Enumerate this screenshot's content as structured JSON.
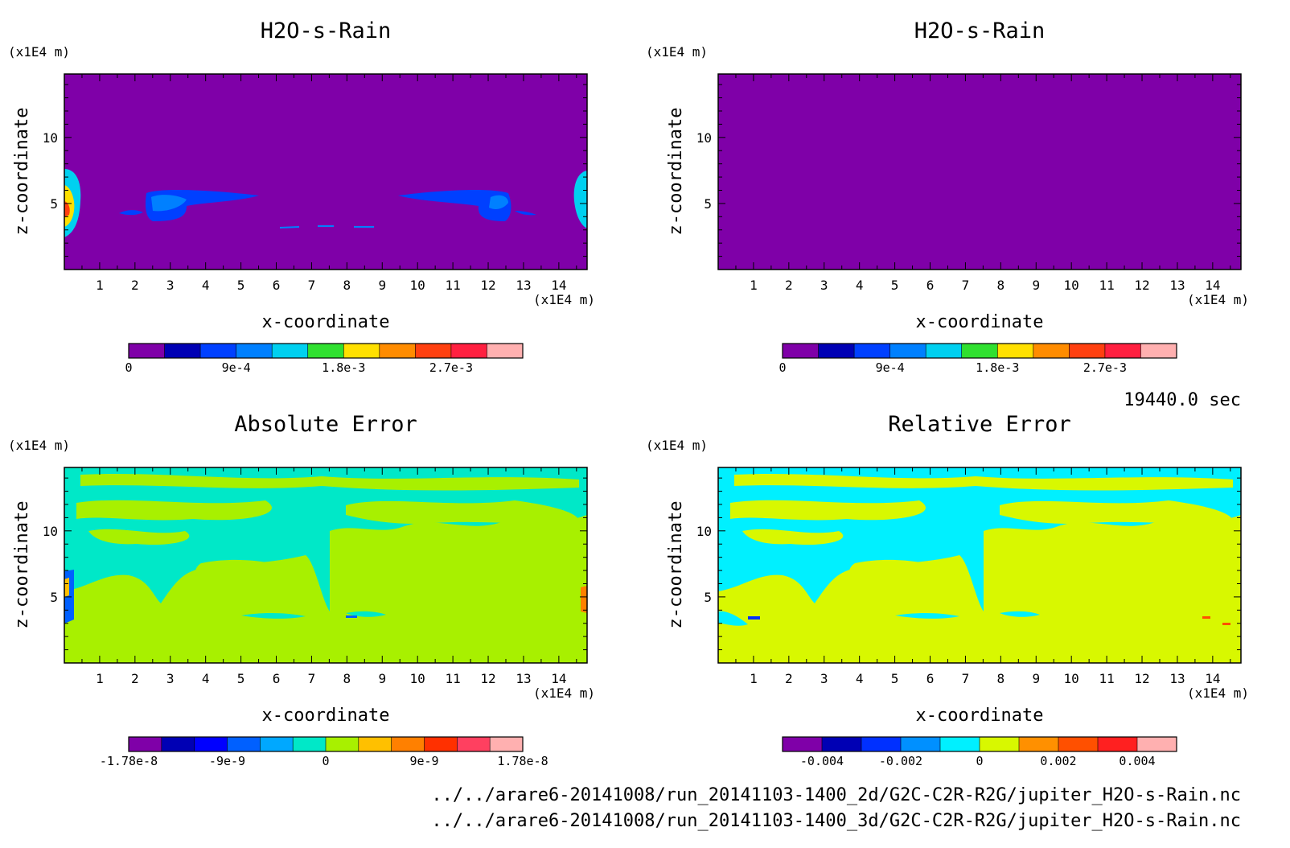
{
  "time_label": "19440.0 sec",
  "footer": {
    "line1": "../../arare6-20141008/run_20141103-1400_2d/G2C-C2R-R2G/jupiter_H2O-s-Rain.nc",
    "line2": "../../arare6-20141008/run_20141103-1400_3d/G2C-C2R-R2G/jupiter_H2O-s-Rain.nc"
  },
  "chart_data": [
    {
      "type": "heatmap",
      "title": "H2O-s-Rain",
      "xlabel": "x-coordinate",
      "ylabel": "z-coordinate",
      "x_unit": "(x1E4 m)",
      "z_unit": "(x1E4 m)",
      "xlim": [
        0,
        14.8
      ],
      "ylim": [
        0,
        14.8
      ],
      "x_ticks": [
        1,
        2,
        3,
        4,
        5,
        6,
        7,
        8,
        9,
        10,
        11,
        12,
        13,
        14
      ],
      "y_ticks": [
        5,
        10
      ],
      "background_color": "#7f00a8",
      "colorbar": {
        "colors": [
          "#7f00a8",
          "#0000b4",
          "#0040ff",
          "#0080ff",
          "#00d0f0",
          "#30e030",
          "#ffe000",
          "#ff8c00",
          "#ff4010",
          "#ff2040",
          "#ffb0b0"
        ],
        "tick_labels": [
          "0",
          "9e-4",
          "1.8e-3",
          "2.7e-3"
        ],
        "tick_indices": [
          0,
          3,
          6,
          9
        ]
      }
    },
    {
      "type": "heatmap",
      "title": "H2O-s-Rain",
      "xlabel": "x-coordinate",
      "ylabel": "z-coordinate",
      "x_unit": "(x1E4 m)",
      "z_unit": "(x1E4 m)",
      "xlim": [
        0,
        14.8
      ],
      "ylim": [
        0,
        14.8
      ],
      "x_ticks": [
        1,
        2,
        3,
        4,
        5,
        6,
        7,
        8,
        9,
        10,
        11,
        12,
        13,
        14
      ],
      "y_ticks": [
        5,
        10
      ],
      "background_color": "#7f00a8",
      "colorbar": {
        "colors": [
          "#7f00a8",
          "#0000b4",
          "#0040ff",
          "#0080ff",
          "#00d0f0",
          "#30e030",
          "#ffe000",
          "#ff8c00",
          "#ff4010",
          "#ff2040",
          "#ffb0b0"
        ],
        "tick_labels": [
          "0",
          "9e-4",
          "1.8e-3",
          "2.7e-3"
        ],
        "tick_indices": [
          0,
          3,
          6,
          9
        ]
      }
    },
    {
      "type": "heatmap",
      "title": "Absolute Error",
      "xlabel": "x-coordinate",
      "ylabel": "z-coordinate",
      "x_unit": "(x1E4 m)",
      "z_unit": "(x1E4 m)",
      "xlim": [
        0,
        14.8
      ],
      "ylim": [
        0,
        14.8
      ],
      "x_ticks": [
        1,
        2,
        3,
        4,
        5,
        6,
        7,
        8,
        9,
        10,
        11,
        12,
        13,
        14
      ],
      "y_ticks": [
        5,
        10
      ],
      "background_color": "#a8f000",
      "colorbar": {
        "colors": [
          "#7f00a8",
          "#0000b4",
          "#0000ff",
          "#0060ff",
          "#00a8ff",
          "#00e8c8",
          "#a8f000",
          "#ffc000",
          "#ff8000",
          "#ff3000",
          "#ff4060",
          "#ffb0b0"
        ],
        "tick_labels": [
          "-1.78e-8",
          "-9e-9",
          "0",
          "9e-9",
          "1.78e-8"
        ],
        "tick_indices": [
          0,
          3,
          6,
          9,
          12
        ]
      }
    },
    {
      "type": "heatmap",
      "title": "Relative Error",
      "xlabel": "x-coordinate",
      "ylabel": "z-coordinate",
      "x_unit": "(x1E4 m)",
      "z_unit": "(x1E4 m)",
      "xlim": [
        0,
        14.8
      ],
      "ylim": [
        0,
        14.8
      ],
      "x_ticks": [
        1,
        2,
        3,
        4,
        5,
        6,
        7,
        8,
        9,
        10,
        11,
        12,
        13,
        14
      ],
      "y_ticks": [
        5,
        10
      ],
      "background_color": "#d8f800",
      "colorbar": {
        "colors": [
          "#7f00a8",
          "#0000b4",
          "#0030ff",
          "#0090ff",
          "#00f0ff",
          "#d8f800",
          "#ff9000",
          "#ff5000",
          "#ff2020",
          "#ffb0b0"
        ],
        "tick_labels": [
          "-0.004",
          "-0.002",
          "0",
          "0.002",
          "0.004"
        ],
        "tick_indices": [
          1,
          3,
          5,
          7,
          9
        ]
      }
    }
  ]
}
